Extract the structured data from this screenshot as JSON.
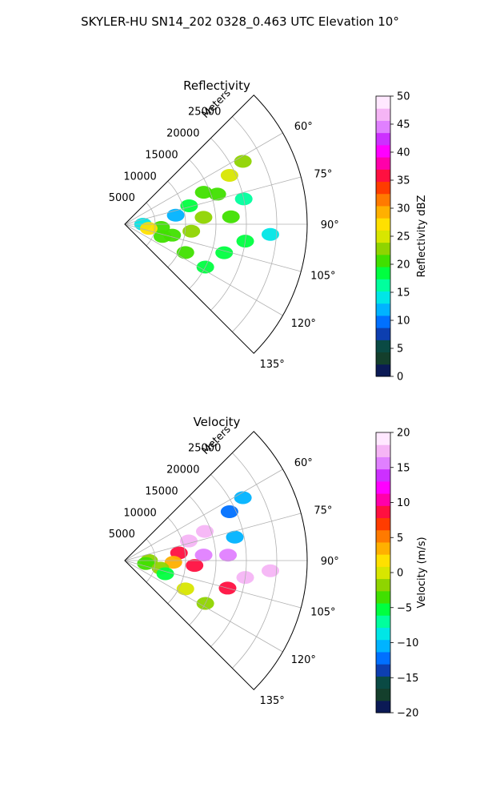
{
  "title": "SKYLER-HU  SN14_202  0328_0.463 UTC Elevation 10°",
  "chart_data": [
    {
      "type": "heatmap",
      "projection": "polar-sector",
      "title": "Reflectivity",
      "radial_label": "Meters",
      "radial_ticks": [
        "5000",
        "10000",
        "15000",
        "20000",
        "25000"
      ],
      "radial_values": [
        5000,
        10000,
        15000,
        20000,
        25000
      ],
      "r_max": 30000,
      "angle_range": [
        45,
        135
      ],
      "angle_ticks": [
        "60°",
        "75°",
        "90°",
        "105°",
        "120°",
        "135°"
      ],
      "angle_values": [
        60,
        75,
        90,
        105,
        120,
        135
      ],
      "colorbar": {
        "label": "Reflectivity dBZ",
        "min": 0,
        "max": 50,
        "ticks": [
          "0",
          "5",
          "10",
          "15",
          "20",
          "25",
          "30",
          "35",
          "40",
          "45",
          "50"
        ],
        "colors": [
          "#0b1a55",
          "#143f2c",
          "#0a4a44",
          "#0d3fb0",
          "#0070ff",
          "#00b3ff",
          "#00e6e6",
          "#00ff9d",
          "#00ff40",
          "#40e000",
          "#8fd400",
          "#d8e600",
          "#ffe000",
          "#ffb000",
          "#ff7a00",
          "#ff3c00",
          "#ff1040",
          "#ff00aa",
          "#ff00ff",
          "#cc30ff",
          "#e080ff",
          "#f5b5f5",
          "#ffe8ff"
        ]
      },
      "cells": [
        {
          "angle": 62,
          "range": 22000,
          "value": 22
        },
        {
          "angle": 65,
          "range": 19000,
          "value": 24
        },
        {
          "angle": 68,
          "range": 14000,
          "value": 20
        },
        {
          "angle": 72,
          "range": 16000,
          "value": 21
        },
        {
          "angle": 74,
          "range": 11000,
          "value": 19
        },
        {
          "angle": 78,
          "range": 20000,
          "value": 17
        },
        {
          "angle": 80,
          "range": 8500,
          "value": 12
        },
        {
          "angle": 85,
          "range": 13000,
          "value": 22
        },
        {
          "angle": 86,
          "range": 17500,
          "value": 20
        },
        {
          "angle": 90,
          "range": 3000,
          "value": 14
        },
        {
          "angle": 95,
          "range": 6000,
          "value": 20
        },
        {
          "angle": 96,
          "range": 11000,
          "value": 22
        },
        {
          "angle": 100,
          "range": 4000,
          "value": 27
        },
        {
          "angle": 103,
          "range": 8000,
          "value": 21
        },
        {
          "angle": 108,
          "range": 6500,
          "value": 20
        },
        {
          "angle": 106,
          "range": 17000,
          "value": 19
        },
        {
          "angle": 115,
          "range": 11000,
          "value": 20
        },
        {
          "angle": 118,
          "range": 15000,
          "value": 18
        },
        {
          "angle": 98,
          "range": 20000,
          "value": 18
        },
        {
          "angle": 94,
          "range": 24000,
          "value": 15
        }
      ]
    },
    {
      "type": "heatmap",
      "projection": "polar-sector",
      "title": "Velocity",
      "radial_label": "Meters",
      "radial_ticks": [
        "5000",
        "10000",
        "15000",
        "20000",
        "25000"
      ],
      "radial_values": [
        5000,
        10000,
        15000,
        20000,
        25000
      ],
      "r_max": 30000,
      "angle_range": [
        45,
        135
      ],
      "angle_ticks": [
        "60°",
        "75°",
        "90°",
        "105°",
        "120°",
        "135°"
      ],
      "angle_values": [
        60,
        75,
        90,
        105,
        120,
        135
      ],
      "colorbar": {
        "label": "Velocity (m/s)",
        "min": -20,
        "max": 20,
        "ticks": [
          "−20",
          "−15",
          "−10",
          "−5",
          "0",
          "5",
          "10",
          "15",
          "20"
        ],
        "colors": [
          "#0b1a55",
          "#143f2c",
          "#0a4a44",
          "#0d3fb0",
          "#0070ff",
          "#00b3ff",
          "#00e6e6",
          "#00ff9d",
          "#00ff40",
          "#40e000",
          "#8fd400",
          "#d8e600",
          "#ffe000",
          "#ffb000",
          "#ff7a00",
          "#ff3c00",
          "#ff1040",
          "#ff00aa",
          "#ff00ff",
          "#cc30ff",
          "#e080ff",
          "#f5b5f5",
          "#ffe8ff"
        ]
      },
      "cells": [
        {
          "angle": 62,
          "range": 22000,
          "value": -11
        },
        {
          "angle": 65,
          "range": 19000,
          "value": -12
        },
        {
          "angle": 70,
          "range": 14000,
          "value": 17
        },
        {
          "angle": 73,
          "range": 11000,
          "value": 17
        },
        {
          "angle": 78,
          "range": 18500,
          "value": -11
        },
        {
          "angle": 82,
          "range": 9000,
          "value": 9
        },
        {
          "angle": 86,
          "range": 13000,
          "value": 16
        },
        {
          "angle": 87,
          "range": 17000,
          "value": 16
        },
        {
          "angle": 90,
          "range": 4000,
          "value": -2
        },
        {
          "angle": 92,
          "range": 8000,
          "value": 3
        },
        {
          "angle": 94,
          "range": 11500,
          "value": 9
        },
        {
          "angle": 98,
          "range": 3500,
          "value": -3
        },
        {
          "angle": 102,
          "range": 6000,
          "value": -1
        },
        {
          "angle": 108,
          "range": 7000,
          "value": -5
        },
        {
          "angle": 105,
          "range": 17500,
          "value": 9
        },
        {
          "angle": 115,
          "range": 11000,
          "value": 0
        },
        {
          "angle": 118,
          "range": 15000,
          "value": -1
        },
        {
          "angle": 98,
          "range": 20000,
          "value": 17
        },
        {
          "angle": 94,
          "range": 24000,
          "value": 17
        }
      ]
    }
  ]
}
